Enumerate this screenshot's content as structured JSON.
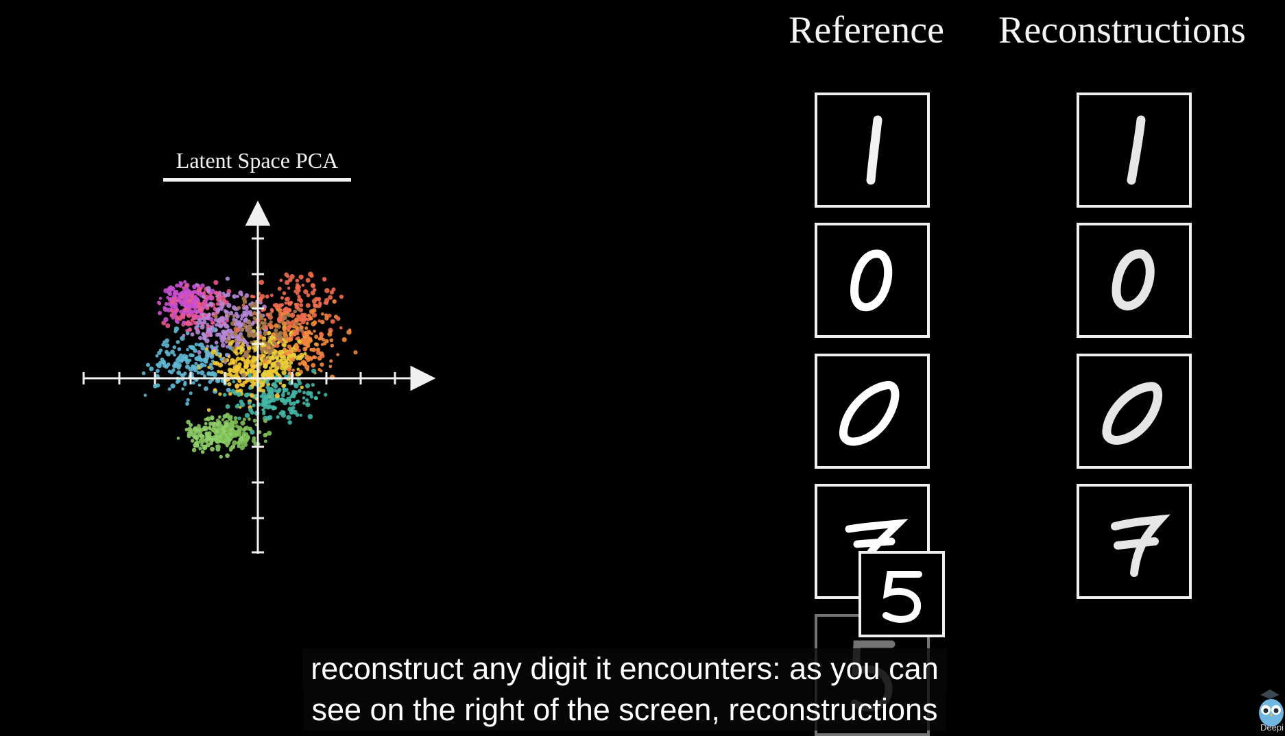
{
  "pca": {
    "title": "Latent Space PCA",
    "cluster_colors": [
      "#e8568f",
      "#c74fd0",
      "#f26b50",
      "#f48a3c",
      "#f5c934",
      "#e8d23a",
      "#5fb9d4",
      "#43b7a6",
      "#8fcf6a",
      "#7fbf56",
      "#b78ad8",
      "#a67a4c"
    ]
  },
  "columns": {
    "reference_label": "Reference",
    "reconstructions_label": "Reconstructions"
  },
  "reference_digits": [
    "1",
    "0",
    "0",
    "7"
  ],
  "reconstruction_digits": [
    "1",
    "0",
    "0",
    "7"
  ],
  "moving_digit": "5",
  "subtitle": {
    "line1": "reconstruct any digit it encounters: as you can",
    "line2": "see on the right of the screen, reconstructions"
  },
  "channel": {
    "label": "Deepi",
    "icon": "owl-mascot-icon"
  }
}
